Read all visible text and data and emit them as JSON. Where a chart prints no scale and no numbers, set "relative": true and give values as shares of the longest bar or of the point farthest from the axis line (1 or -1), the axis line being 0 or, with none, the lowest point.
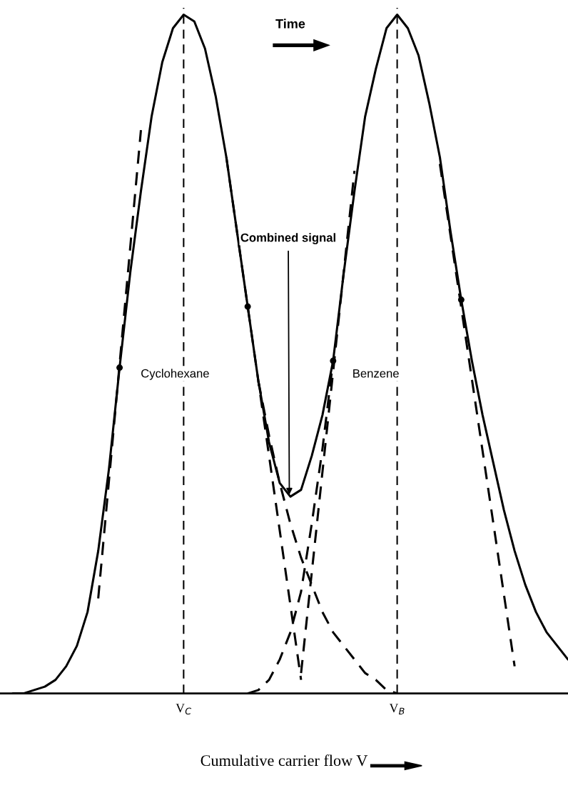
{
  "chart_data": {
    "type": "line",
    "relative": true,
    "xlabel": "Cumulative carrier flow V",
    "categories": [
      null,
      null,
      null,
      null,
      null,
      null,
      null,
      null,
      null,
      null,
      null,
      null,
      null,
      null,
      null,
      null,
      "V$_{C}$",
      null,
      null,
      null,
      null,
      null,
      null,
      null,
      null,
      null,
      null,
      null,
      null,
      null,
      null,
      null,
      null,
      null,
      null,
      null,
      "V$_{B}$",
      null,
      null,
      null,
      null,
      null,
      null,
      null,
      null,
      null,
      null,
      null,
      null,
      null,
      null,
      null,
      null
    ],
    "grid": false,
    "legend": false,
    "tick_labels": "x",
    "series": [
      {
        "color": "#000000",
        "line_style": "solid",
        "values": [
          0,
          0,
          0.005,
          0.01,
          0.02,
          0.04,
          0.07,
          0.12,
          0.21,
          0.33,
          0.48,
          0.62,
          0.74,
          0.85,
          0.93,
          0.98,
          1,
          0.99,
          0.95,
          0.88,
          0.79,
          0.68,
          0.57,
          0.46,
          0.37,
          0.31,
          0.29,
          0.3,
          0.35,
          0.41,
          0.49,
          0.62,
          0.74,
          0.85,
          0.92,
          0.98,
          1,
          0.98,
          0.94,
          0.87,
          0.79,
          0.68,
          0.58,
          0.49,
          0.41,
          0.34,
          0.27,
          0.21,
          0.16,
          0.12,
          0.09,
          0.07,
          0.05
        ]
      },
      {
        "color": "#000000",
        "line_style": "dashed",
        "values": [
          null,
          null,
          null,
          null,
          null,
          null,
          null,
          null,
          null,
          null,
          null,
          null,
          null,
          null,
          null,
          null,
          null,
          null,
          null,
          null,
          null,
          null,
          null,
          0.46,
          0.38,
          0.31,
          0.25,
          0.2,
          0.16,
          0.12,
          0.09,
          0.07,
          0.05,
          0.03,
          0.02,
          0.005,
          0,
          null,
          null,
          null,
          null,
          null,
          null,
          null,
          null,
          null,
          null,
          null,
          null,
          null,
          null,
          null,
          null
        ]
      },
      {
        "color": "#000000",
        "line_style": "dashed",
        "values": [
          null,
          null,
          null,
          null,
          null,
          null,
          null,
          null,
          null,
          null,
          null,
          null,
          null,
          null,
          null,
          null,
          null,
          null,
          null,
          null,
          null,
          null,
          0,
          0.005,
          0.02,
          0.05,
          0.09,
          0.15,
          0.25,
          0.36,
          0.49,
          null,
          null,
          null,
          null,
          null,
          null,
          null,
          null,
          null,
          null,
          null,
          null,
          null,
          null,
          null,
          null,
          null,
          null,
          null,
          null,
          null,
          null
        ]
      },
      {
        "color": "#000000",
        "line_style": "dashed",
        "values": [
          null,
          null,
          null,
          null,
          null,
          null,
          null,
          null,
          0.14,
          null,
          null,
          null,
          0.83,
          null,
          null,
          null,
          null,
          null,
          null,
          null,
          null,
          null,
          null,
          null,
          null,
          null,
          null,
          null,
          null,
          null,
          null,
          null,
          null,
          null,
          null,
          null,
          null,
          null,
          null,
          null,
          null,
          null,
          null,
          null,
          null,
          null,
          null,
          null,
          null,
          null,
          null,
          null,
          null
        ]
      },
      {
        "color": "#000000",
        "line_style": "dashed",
        "values": [
          null,
          null,
          null,
          null,
          null,
          null,
          null,
          null,
          null,
          null,
          null,
          null,
          null,
          null,
          null,
          null,
          null,
          null,
          null,
          null,
          0.79,
          null,
          null,
          null,
          null,
          null,
          null,
          0.02,
          null,
          null,
          null,
          null,
          null,
          null,
          null,
          null,
          null,
          null,
          null,
          null,
          null,
          null,
          null,
          null,
          null,
          null,
          null,
          null,
          null,
          null,
          null,
          null,
          null
        ]
      },
      {
        "color": "#000000",
        "line_style": "dashed",
        "values": [
          null,
          null,
          null,
          null,
          null,
          null,
          null,
          null,
          null,
          null,
          null,
          null,
          null,
          null,
          null,
          null,
          null,
          null,
          null,
          null,
          null,
          null,
          null,
          null,
          null,
          null,
          null,
          0.03,
          null,
          null,
          null,
          null,
          0.77,
          null,
          null,
          null,
          null,
          null,
          null,
          null,
          null,
          null,
          null,
          null,
          null,
          null,
          null,
          null,
          null,
          null,
          null,
          null,
          null
        ]
      },
      {
        "color": "#000000",
        "line_style": "dashed",
        "values": [
          null,
          null,
          null,
          null,
          null,
          null,
          null,
          null,
          null,
          null,
          null,
          null,
          null,
          null,
          null,
          null,
          null,
          null,
          null,
          null,
          null,
          null,
          null,
          null,
          null,
          null,
          null,
          null,
          null,
          null,
          null,
          null,
          null,
          null,
          null,
          null,
          null,
          null,
          null,
          null,
          0.78,
          null,
          null,
          null,
          null,
          null,
          null,
          0.04,
          null,
          null,
          null,
          null,
          null
        ]
      },
      {
        "type": "scatter",
        "color": "#000000",
        "marker": "circle",
        "values": [
          null,
          null,
          null,
          null,
          null,
          null,
          null,
          null,
          null,
          null,
          0.48,
          null,
          null,
          null,
          null,
          null,
          null,
          null,
          null,
          null,
          null,
          null,
          0.57,
          null,
          null,
          null,
          null,
          null,
          null,
          null,
          0.49,
          null,
          null,
          null,
          null,
          null,
          null,
          null,
          null,
          null,
          null,
          null,
          0.58,
          null,
          null,
          null,
          null,
          null,
          null,
          null,
          null,
          null,
          null
        ]
      }
    ],
    "ref_lines": [
      {
        "axis": "x",
        "value": "V$_{C}$",
        "color": "#000000",
        "line_style": "dashed"
      },
      {
        "axis": "x",
        "value": "V$_{B}$",
        "color": "#000000",
        "line_style": "dashed"
      }
    ],
    "annotations": [
      "Time",
      {
        "text": "Combined signal",
        "y": 0.29
      },
      "Cyclohexane",
      "Benzene"
    ]
  }
}
